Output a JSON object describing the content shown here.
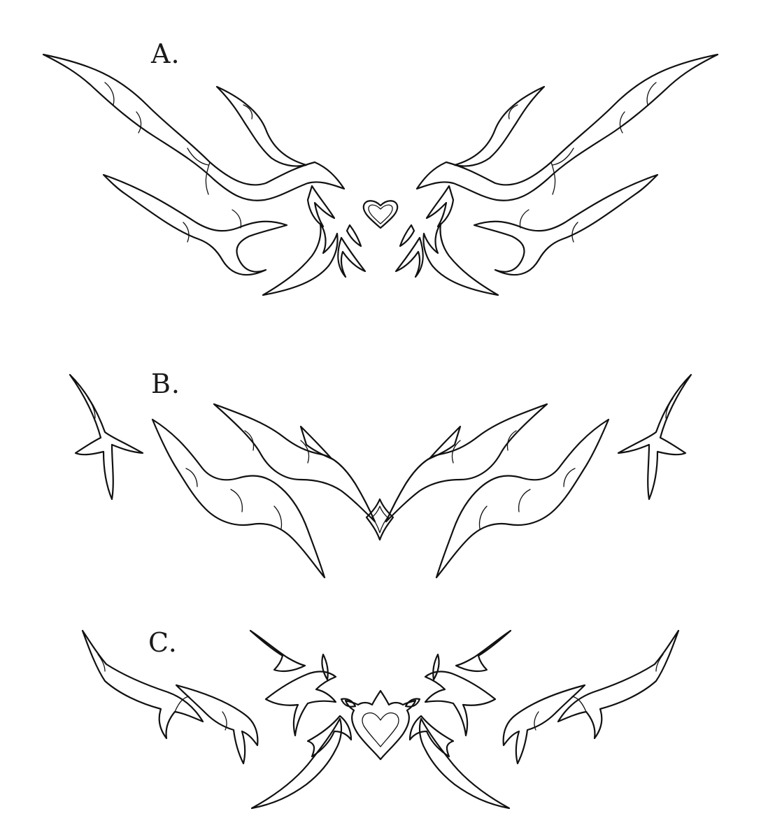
{
  "designs": [
    {
      "label": "A.",
      "centerpiece": "heart-icon"
    },
    {
      "label": "B.",
      "centerpiece": "diamond-icon"
    },
    {
      "label": "C.",
      "centerpiece": "spiked-heart-icon"
    }
  ],
  "colors": {
    "ink": "#111111",
    "background": "#ffffff"
  }
}
